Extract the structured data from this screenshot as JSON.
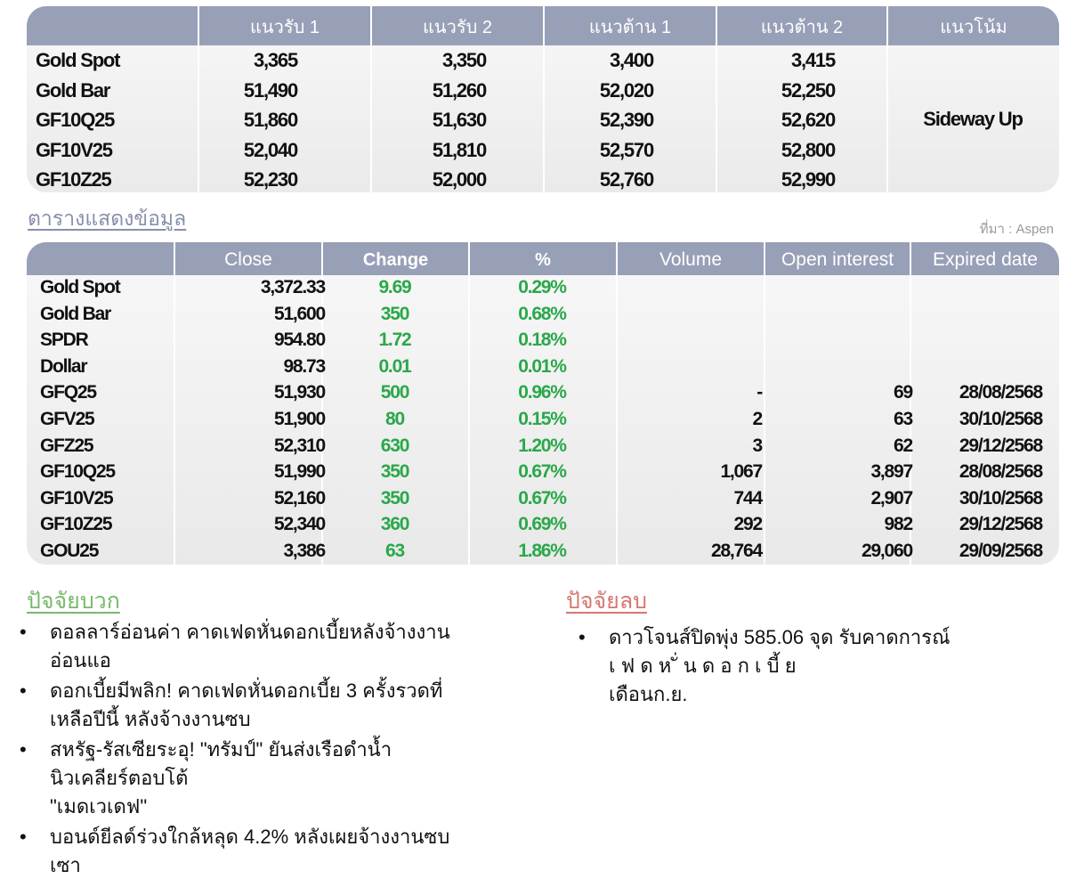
{
  "table1": {
    "headers": [
      "",
      "แนวรับ 1",
      "แนวรับ 2",
      "แนวต้าน 1",
      "แนวต้าน 2",
      "แนวโน้ม"
    ],
    "rows": [
      {
        "name": "Gold Spot",
        "s1": "3,365",
        "s2": "3,350",
        "r1": "3,400",
        "r2": "3,415"
      },
      {
        "name": "Gold Bar",
        "s1": "51,490",
        "s2": "51,260",
        "r1": "52,020",
        "r2": "52,250"
      },
      {
        "name": "GF10Q25",
        "s1": "51,860",
        "s2": "51,630",
        "r1": "52,390",
        "r2": "52,620"
      },
      {
        "name": "GF10V25",
        "s1": "52,040",
        "s2": "51,810",
        "r1": "52,570",
        "r2": "52,800"
      },
      {
        "name": "GF10Z25",
        "s1": "52,230",
        "s2": "52,000",
        "r1": "52,760",
        "r2": "52,990"
      }
    ],
    "trend": "Sideway Up"
  },
  "caption": "ตารางแสดงข้อมูล",
  "source": "ที่มา : Aspen",
  "table2": {
    "headers": [
      "",
      "Close",
      "Change",
      "%",
      "Volume",
      "Open interest",
      "Expired date"
    ],
    "rows": [
      {
        "name": "Gold Spot",
        "close": "3,372.33",
        "change": "9.69",
        "pct": "0.29%",
        "volume": "",
        "oi": "",
        "expiry": ""
      },
      {
        "name": "Gold Bar",
        "close": "51,600",
        "change": "350",
        "pct": "0.68%",
        "volume": "",
        "oi": "",
        "expiry": ""
      },
      {
        "name": "SPDR",
        "close": "954.80",
        "change": "1.72",
        "pct": "0.18%",
        "volume": "",
        "oi": "",
        "expiry": ""
      },
      {
        "name": "Dollar",
        "close": "98.73",
        "change": "0.01",
        "pct": "0.01%",
        "volume": "",
        "oi": "",
        "expiry": ""
      },
      {
        "name": "GFQ25",
        "close": "51,930",
        "change": "500",
        "pct": "0.96%",
        "volume": "-",
        "oi": "69",
        "expiry": "28/08/2568"
      },
      {
        "name": "GFV25",
        "close": "51,900",
        "change": "80",
        "pct": "0.15%",
        "volume": "2",
        "oi": "63",
        "expiry": "30/10/2568"
      },
      {
        "name": "GFZ25",
        "close": "52,310",
        "change": "630",
        "pct": "1.20%",
        "volume": "3",
        "oi": "62",
        "expiry": "29/12/2568"
      },
      {
        "name": "GF10Q25",
        "close": "51,990",
        "change": "350",
        "pct": "0.67%",
        "volume": "1,067",
        "oi": "3,897",
        "expiry": "28/08/2568"
      },
      {
        "name": "GF10V25",
        "close": "52,160",
        "change": "350",
        "pct": "0.67%",
        "volume": "744",
        "oi": "2,907",
        "expiry": "30/10/2568"
      },
      {
        "name": "GF10Z25",
        "close": "52,340",
        "change": "360",
        "pct": "0.69%",
        "volume": "292",
        "oi": "982",
        "expiry": "29/12/2568"
      },
      {
        "name": "GOU25",
        "close": "3,386",
        "change": "63",
        "pct": "1.86%",
        "volume": "28,764",
        "oi": "29,060",
        "expiry": "29/09/2568"
      }
    ]
  },
  "factors": {
    "positive_title": "ปัจจัยบวก",
    "positive": [
      {
        "lines": [
          "ดอลลาร์อ่อนค่า คาดเฟดหั่นดอกเบี้ยหลังจ้างงาน",
          "อ่อนแอ"
        ]
      },
      {
        "lines": [
          "ดอกเบี้ยมีพลิก! คาดเฟดหั่นดอกเบี้ย 3 ครั้งรวดที่",
          "เหลือปีนี้ หลังจ้างงานซบ"
        ]
      },
      {
        "lines": [
          "สหรัฐ-รัสเซียระอุ! \"ทรัมป์\" ยันส่งเรือดำน้ำ",
          "นิวเคลียร์ตอบโต้",
          "\"เมดเวเดฟ\""
        ]
      },
      {
        "lines": [
          "บอนด์ยีลด์ร่วงใกล้หลุด 4.2% หลังเผยจ้างงานซบ",
          "เซา"
        ]
      }
    ],
    "negative_title": "ปัจจัยลบ",
    "negative": [
      {
        "lines": [
          "ดาวโจนส์ปิดพุ่ง 585.06 จุด รับคาดการณ์",
          "เ ฟ ด ห ั่ น ด อ ก เ บี้ ย",
          "เดือนก.ย."
        ]
      }
    ]
  }
}
